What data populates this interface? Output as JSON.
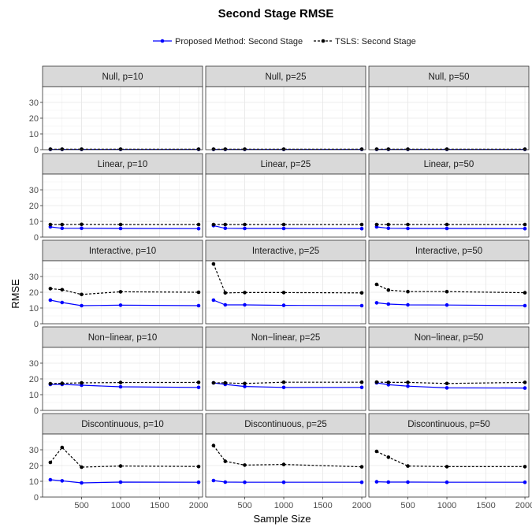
{
  "chart_data": {
    "type": "line",
    "title": "Second Stage RMSE",
    "xlabel": "Sample Size",
    "ylabel": "RMSE",
    "legend_position": "top",
    "x": [
      100,
      250,
      500,
      1000,
      2000
    ],
    "xlim": [
      0,
      2050
    ],
    "ylim": [
      0,
      40
    ],
    "x_ticks": [
      500,
      1000,
      1500,
      2000
    ],
    "x_tick_labels": [
      "500",
      "1000",
      "1500",
      "2000"
    ],
    "y_ticks": [
      0,
      10,
      20,
      30
    ],
    "y_tick_labels": [
      "0",
      "10",
      "20",
      "30"
    ],
    "grid": true,
    "series": [
      {
        "name": "Proposed Method: Second Stage",
        "color": "#0000ff",
        "line_style": "solid"
      },
      {
        "name": "TSLS: Second Stage",
        "color": "#000000",
        "line_style": "dashed"
      }
    ],
    "rows": [
      "Null",
      "Linear",
      "Interactive",
      "Non−linear",
      "Discontinuous"
    ],
    "columns": [
      "p=10",
      "p=25",
      "p=50"
    ],
    "panels": [
      {
        "title": "Null, p=10",
        "values": [
          [
            0.2,
            0.2,
            0.2,
            0.2,
            0.2
          ],
          [
            0.3,
            0.3,
            0.3,
            0.3,
            0.3
          ]
        ]
      },
      {
        "title": "Null, p=25",
        "values": [
          [
            0.2,
            0.2,
            0.2,
            0.2,
            0.2
          ],
          [
            0.3,
            0.3,
            0.3,
            0.3,
            0.3
          ]
        ]
      },
      {
        "title": "Null, p=50",
        "values": [
          [
            0.2,
            0.2,
            0.2,
            0.2,
            0.2
          ],
          [
            0.3,
            0.3,
            0.3,
            0.3,
            0.3
          ]
        ]
      },
      {
        "title": "Linear, p=10",
        "values": [
          [
            6.5,
            5.6,
            5.6,
            5.5,
            5.4
          ],
          [
            8.0,
            8.0,
            8.1,
            8.0,
            8.0
          ]
        ]
      },
      {
        "title": "Linear, p=25",
        "values": [
          [
            7.3,
            5.6,
            5.5,
            5.5,
            5.4
          ],
          [
            8.0,
            8.0,
            8.0,
            8.0,
            8.0
          ]
        ]
      },
      {
        "title": "Linear, p=50",
        "values": [
          [
            6.5,
            5.6,
            5.5,
            5.5,
            5.4
          ],
          [
            8.0,
            8.0,
            8.0,
            8.0,
            8.0
          ]
        ]
      },
      {
        "title": "Interactive, p=10",
        "values": [
          [
            15.0,
            13.5,
            11.5,
            11.8,
            11.5
          ],
          [
            22.3,
            21.6,
            18.6,
            20.3,
            20.0
          ]
        ]
      },
      {
        "title": "Interactive, p=25",
        "values": [
          [
            15.0,
            12.0,
            12.0,
            11.7,
            11.5
          ],
          [
            38.0,
            19.6,
            19.8,
            19.8,
            19.6
          ]
        ]
      },
      {
        "title": "Interactive, p=50",
        "values": [
          [
            13.3,
            12.5,
            12.0,
            11.9,
            11.5
          ],
          [
            25.0,
            21.4,
            20.4,
            20.4,
            19.7
          ]
        ]
      },
      {
        "title": "Non−linear, p=10",
        "values": [
          [
            16.5,
            16.5,
            16.0,
            15.0,
            14.6
          ],
          [
            17.0,
            17.2,
            17.5,
            17.7,
            17.8
          ]
        ]
      },
      {
        "title": "Non−linear, p=25",
        "values": [
          [
            17.5,
            16.5,
            15.2,
            14.6,
            14.6
          ],
          [
            17.5,
            17.5,
            17.1,
            17.9,
            17.9
          ]
        ]
      },
      {
        "title": "Non−linear, p=50",
        "values": [
          [
            17.5,
            16.3,
            15.4,
            14.3,
            14.2
          ],
          [
            18.0,
            17.8,
            17.8,
            17.1,
            17.8
          ]
        ]
      },
      {
        "title": "Discontinuous, p=10",
        "values": [
          [
            11.0,
            10.3,
            9.0,
            9.5,
            9.4
          ],
          [
            22.0,
            31.5,
            19.0,
            19.7,
            19.4
          ]
        ]
      },
      {
        "title": "Discontinuous, p=25",
        "values": [
          [
            10.5,
            9.5,
            9.4,
            9.4,
            9.4
          ],
          [
            32.7,
            22.7,
            20.3,
            20.7,
            19.2
          ]
        ]
      },
      {
        "title": "Discontinuous, p=50",
        "values": [
          [
            9.7,
            9.5,
            9.5,
            9.4,
            9.4
          ],
          [
            29.0,
            25.3,
            19.7,
            19.3,
            19.3
          ]
        ]
      }
    ]
  }
}
